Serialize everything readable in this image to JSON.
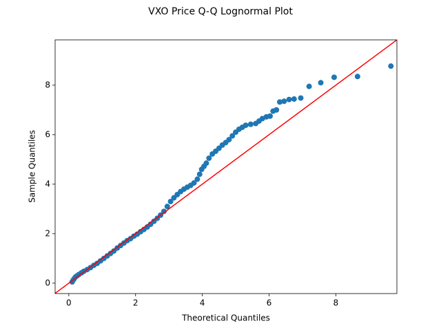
{
  "chart_data": {
    "type": "scatter",
    "title": "VXO Price Q-Q Lognormal Plot",
    "x_label": "Theoretical Quantiles",
    "y_label": "Sample Quantiles",
    "xlim": [
      -0.41,
      9.83
    ],
    "ylim": [
      -0.42,
      9.83
    ],
    "xticks": [
      0,
      2,
      4,
      6,
      8
    ],
    "yticks": [
      0,
      2,
      4,
      6,
      8
    ],
    "reference_line_color": "#ff0000",
    "series": [
      {
        "color": "#1f77b4",
        "x": [
          0.1,
          0.13,
          0.16,
          0.2,
          0.25,
          0.3,
          0.38,
          0.45,
          0.55,
          0.65,
          0.75,
          0.85,
          0.95,
          1.05,
          1.15,
          1.25,
          1.35,
          1.45,
          1.55,
          1.65,
          1.75,
          1.85,
          1.95,
          2.05,
          2.15,
          2.25,
          2.35,
          2.45,
          2.55,
          2.65,
          2.75,
          2.85,
          2.95,
          3.05,
          3.15,
          3.25,
          3.35,
          3.45,
          3.55,
          3.65,
          3.75,
          3.85,
          3.92,
          3.98,
          4.05,
          4.12,
          4.2,
          4.3,
          4.4,
          4.5,
          4.6,
          4.7,
          4.8,
          4.9,
          5.0,
          5.1,
          5.2,
          5.3,
          5.45,
          5.6,
          5.7,
          5.8,
          5.92,
          6.03,
          6.12,
          6.22,
          6.32,
          6.45,
          6.6,
          6.75,
          6.95,
          7.2,
          7.55,
          7.95,
          8.65,
          9.65
        ],
        "y": [
          0.05,
          0.12,
          0.18,
          0.25,
          0.3,
          0.35,
          0.42,
          0.48,
          0.55,
          0.63,
          0.72,
          0.8,
          0.9,
          1.0,
          1.1,
          1.2,
          1.3,
          1.42,
          1.52,
          1.62,
          1.72,
          1.8,
          1.9,
          1.98,
          2.08,
          2.17,
          2.27,
          2.38,
          2.5,
          2.62,
          2.75,
          2.9,
          3.1,
          3.3,
          3.45,
          3.58,
          3.7,
          3.8,
          3.88,
          3.95,
          4.05,
          4.2,
          4.4,
          4.6,
          4.72,
          4.85,
          5.05,
          5.22,
          5.33,
          5.45,
          5.58,
          5.68,
          5.8,
          5.95,
          6.1,
          6.22,
          6.3,
          6.38,
          6.42,
          6.45,
          6.55,
          6.65,
          6.72,
          6.75,
          6.95,
          7.0,
          7.32,
          7.35,
          7.42,
          7.44,
          7.48,
          7.95,
          8.1,
          8.32,
          8.35,
          8.77
        ]
      }
    ]
  }
}
